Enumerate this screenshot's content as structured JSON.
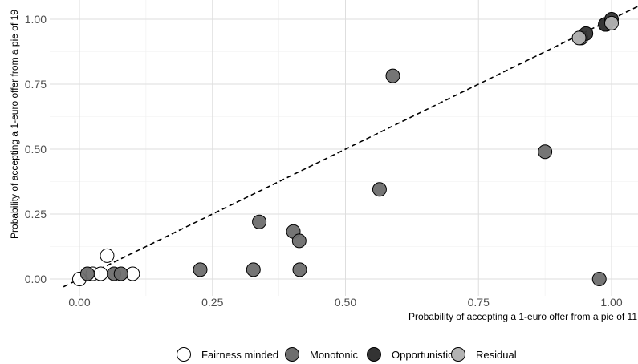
{
  "chart_data": {
    "type": "scatter",
    "xlabel": "Probability of accepting a 1-euro offer from a pie of 11",
    "ylabel": "Probability of accepting a 1-euro offer from a pie of 19",
    "xlim": [
      -0.05,
      1.05
    ],
    "ylim": [
      -0.05,
      1.05
    ],
    "x_ticks": [
      0,
      0.25,
      0.5,
      0.75,
      1
    ],
    "y_ticks": [
      0,
      0.25,
      0.5,
      0.75,
      1
    ],
    "x_tick_labels": [
      "0.00",
      "0.25",
      "0.50",
      "0.75",
      "1.00"
    ],
    "y_tick_labels": [
      "0.00",
      "0.25",
      "0.50",
      "0.75",
      "1.00"
    ],
    "grid": true,
    "reference_line": {
      "type": "dashed",
      "slope": 1,
      "intercept": 0
    },
    "legend_position": "bottom",
    "series": [
      {
        "name": "Fairness minded",
        "color": "#ffffff",
        "points": [
          {
            "x": 0.0,
            "y": 0.0
          },
          {
            "x": 0.025,
            "y": 0.02
          },
          {
            "x": 0.04,
            "y": 0.02
          },
          {
            "x": 0.052,
            "y": 0.09
          },
          {
            "x": 0.1,
            "y": 0.02
          }
        ]
      },
      {
        "name": "Monotonic",
        "color": "#6e6e6e",
        "points": [
          {
            "x": 0.015,
            "y": 0.02
          },
          {
            "x": 0.065,
            "y": 0.02
          },
          {
            "x": 0.078,
            "y": 0.02
          },
          {
            "x": 0.227,
            "y": 0.036
          },
          {
            "x": 0.327,
            "y": 0.036
          },
          {
            "x": 0.338,
            "y": 0.22
          },
          {
            "x": 0.402,
            "y": 0.183
          },
          {
            "x": 0.413,
            "y": 0.147
          },
          {
            "x": 0.414,
            "y": 0.036
          },
          {
            "x": 0.564,
            "y": 0.345
          },
          {
            "x": 0.589,
            "y": 0.782
          },
          {
            "x": 0.875,
            "y": 0.49
          },
          {
            "x": 0.977,
            "y": 0.0
          },
          {
            "x": 0.943,
            "y": 0.928
          },
          {
            "x": 0.99,
            "y": 0.98
          }
        ]
      },
      {
        "name": "Opportunistic",
        "color": "#333333",
        "points": [
          {
            "x": 0.952,
            "y": 0.945
          },
          {
            "x": 0.988,
            "y": 0.98
          },
          {
            "x": 1.0,
            "y": 1.0
          }
        ]
      },
      {
        "name": "Residual",
        "color": "#b3b3b3",
        "points": [
          {
            "x": 0.939,
            "y": 0.928
          },
          {
            "x": 1.0,
            "y": 0.985
          }
        ]
      }
    ]
  }
}
